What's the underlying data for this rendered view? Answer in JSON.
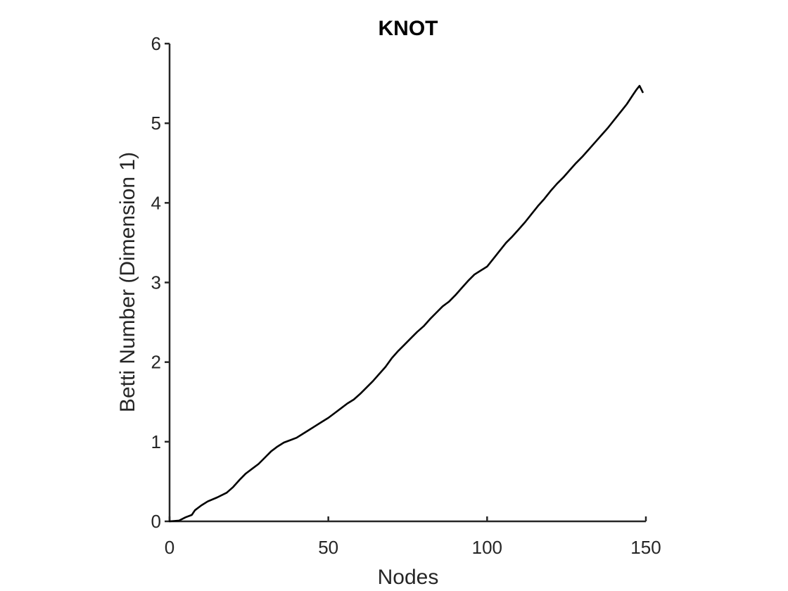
{
  "chart_data": {
    "type": "line",
    "title": "KNOT",
    "xlabel": "Nodes",
    "ylabel": "Betti Number (Dimension 1)",
    "xlim": [
      0,
      150
    ],
    "ylim": [
      0,
      6
    ],
    "xticks": [
      0,
      50,
      100,
      150
    ],
    "yticks": [
      0,
      1,
      2,
      3,
      4,
      5,
      6
    ],
    "grid": false,
    "legend": "none",
    "colors": {
      "line": "#000000",
      "axis": "#262626"
    },
    "series": [
      {
        "x": [
          0,
          3,
          5,
          7,
          8,
          10,
          12,
          15,
          18,
          20,
          22,
          24,
          26,
          28,
          30,
          32,
          34,
          36,
          38,
          40,
          42,
          44,
          46,
          48,
          50,
          52,
          54,
          56,
          58,
          60,
          62,
          64,
          66,
          68,
          70,
          72,
          74,
          76,
          78,
          80,
          82,
          84,
          86,
          88,
          90,
          92,
          94,
          96,
          98,
          100,
          102,
          104,
          106,
          108,
          110,
          112,
          114,
          116,
          118,
          120,
          122,
          124,
          126,
          128,
          130,
          132,
          134,
          136,
          138,
          140,
          142,
          144,
          146,
          147,
          148,
          149
        ],
        "y": [
          0,
          0.01,
          0.05,
          0.08,
          0.14,
          0.2,
          0.25,
          0.3,
          0.36,
          0.43,
          0.52,
          0.6,
          0.66,
          0.72,
          0.8,
          0.88,
          0.94,
          0.99,
          1.02,
          1.05,
          1.1,
          1.15,
          1.2,
          1.25,
          1.3,
          1.36,
          1.42,
          1.48,
          1.53,
          1.6,
          1.68,
          1.76,
          1.85,
          1.94,
          2.05,
          2.14,
          2.22,
          2.3,
          2.38,
          2.45,
          2.54,
          2.62,
          2.7,
          2.76,
          2.84,
          2.93,
          3.02,
          3.1,
          3.15,
          3.2,
          3.3,
          3.4,
          3.5,
          3.58,
          3.67,
          3.76,
          3.86,
          3.96,
          4.05,
          4.15,
          4.24,
          4.32,
          4.41,
          4.5,
          4.58,
          4.67,
          4.76,
          4.85,
          4.94,
          5.04,
          5.14,
          5.24,
          5.36,
          5.42,
          5.47,
          5.39
        ]
      }
    ]
  }
}
